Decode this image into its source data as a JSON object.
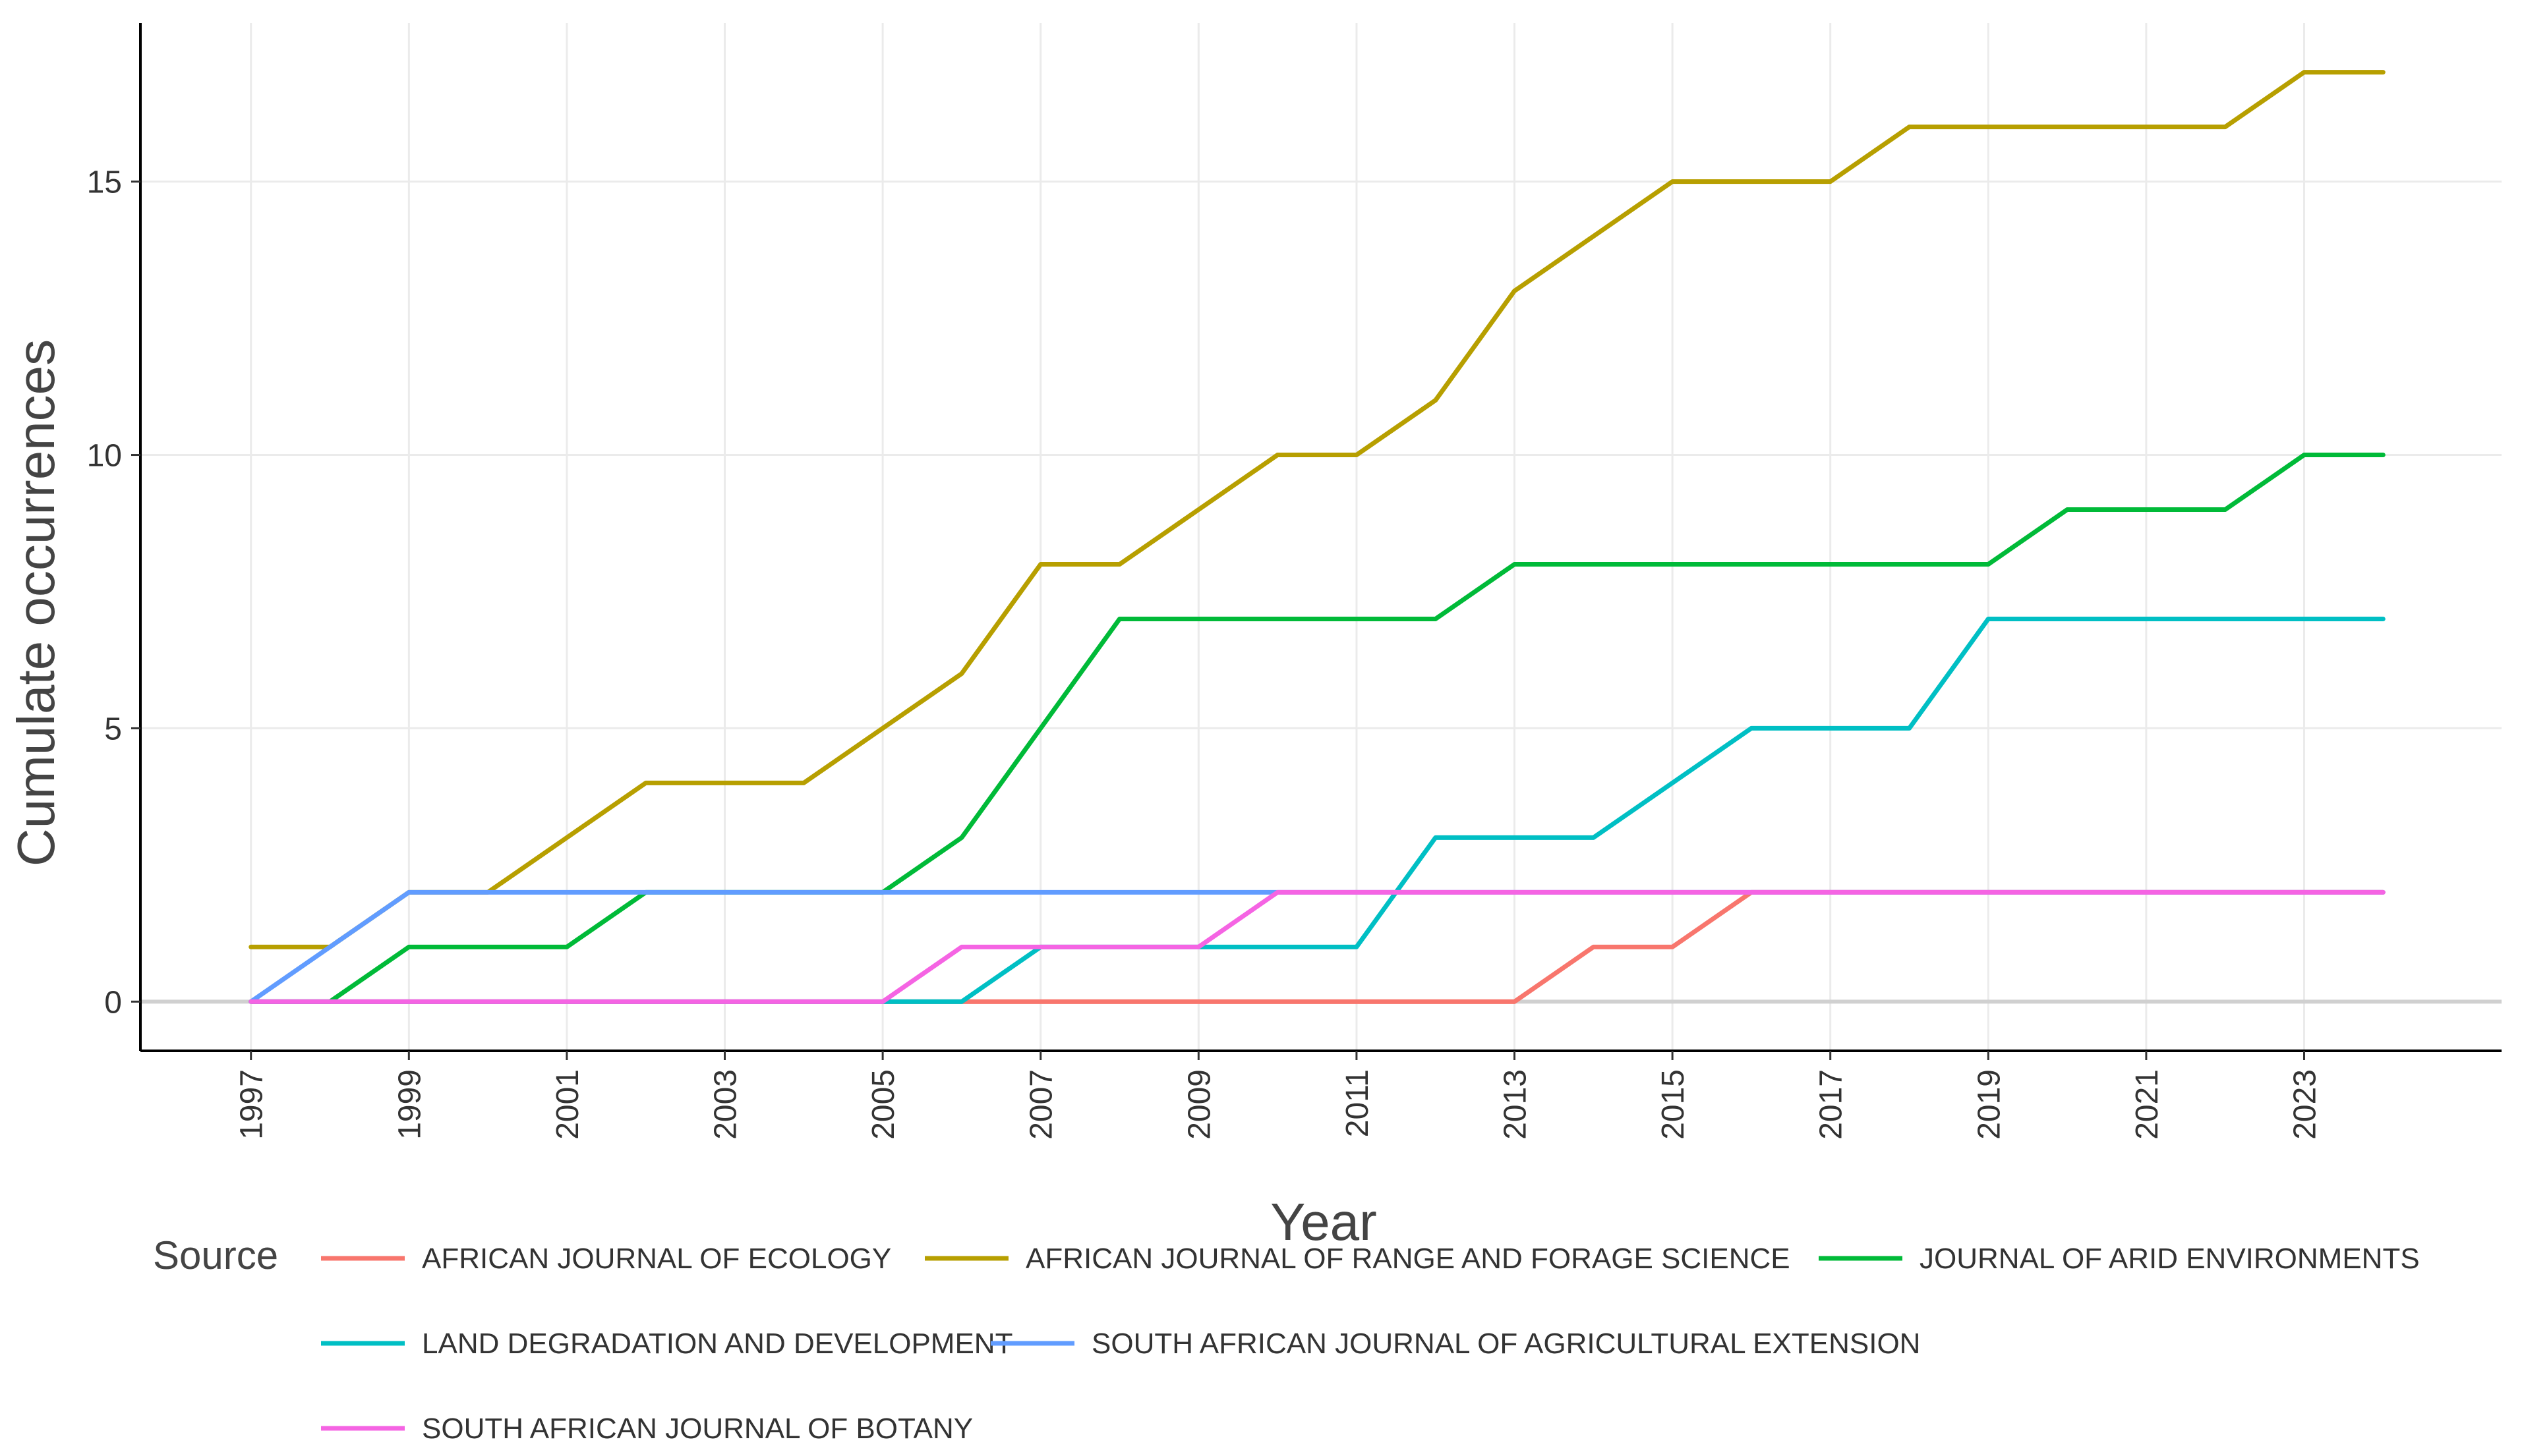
{
  "chart_data": {
    "type": "line",
    "title": "",
    "xlabel": "Year",
    "ylabel": "Cumulate occurrences",
    "xlim": [
      1995.6,
      2025.5
    ],
    "ylim": [
      -0.9,
      17.9
    ],
    "x_ticks": [
      1997,
      1999,
      2001,
      2003,
      2005,
      2007,
      2009,
      2011,
      2013,
      2015,
      2017,
      2019,
      2021,
      2023
    ],
    "x_tick_labels": [
      "1997",
      "1999",
      "2001",
      "2003",
      "2005",
      "2007",
      "2009",
      "2011",
      "2013",
      "2015",
      "2017",
      "2019",
      "2021",
      "2023"
    ],
    "y_ticks": [
      0,
      5,
      10,
      15
    ],
    "y_tick_labels": [
      "0",
      "5",
      "10",
      "15"
    ],
    "grid": true,
    "legend_title": "Source",
    "legend_position": "bottom",
    "x": [
      1997,
      1998,
      1999,
      2000,
      2001,
      2002,
      2003,
      2004,
      2005,
      2006,
      2007,
      2008,
      2009,
      2010,
      2011,
      2012,
      2013,
      2014,
      2015,
      2016,
      2017,
      2018,
      2019,
      2020,
      2021,
      2022,
      2023,
      2024
    ],
    "series": [
      {
        "name": "AFRICAN JOURNAL OF ECOLOGY",
        "color": "#F8766D",
        "values": [
          0,
          0,
          0,
          0,
          0,
          0,
          0,
          0,
          0,
          0,
          0,
          0,
          0,
          0,
          0,
          0,
          0,
          1,
          1,
          2,
          2,
          2,
          2,
          2,
          2,
          2,
          2,
          2
        ]
      },
      {
        "name": "AFRICAN JOURNAL OF RANGE AND FORAGE SCIENCE",
        "color": "#B79F00",
        "values": [
          1,
          1,
          2,
          2,
          3,
          4,
          4,
          4,
          5,
          6,
          8,
          8,
          9,
          10,
          10,
          11,
          13,
          14,
          15,
          15,
          15,
          16,
          16,
          16,
          16,
          16,
          17,
          17
        ]
      },
      {
        "name": "JOURNAL OF ARID ENVIRONMENTS",
        "color": "#00BA38",
        "values": [
          0,
          0,
          1,
          1,
          1,
          2,
          2,
          2,
          2,
          3,
          5,
          7,
          7,
          7,
          7,
          7,
          8,
          8,
          8,
          8,
          8,
          8,
          8,
          9,
          9,
          9,
          10,
          10
        ]
      },
      {
        "name": "LAND DEGRADATION AND DEVELOPMENT",
        "color": "#00BFC4",
        "values": [
          0,
          0,
          0,
          0,
          0,
          0,
          0,
          0,
          0,
          0,
          1,
          1,
          1,
          1,
          1,
          3,
          3,
          3,
          4,
          5,
          5,
          5,
          7,
          7,
          7,
          7,
          7,
          7
        ]
      },
      {
        "name": "SOUTH AFRICAN JOURNAL OF AGRICULTURAL EXTENSION",
        "color": "#619CFF",
        "values": [
          0,
          1,
          2,
          2,
          2,
          2,
          2,
          2,
          2,
          2,
          2,
          2,
          2,
          2,
          2,
          2,
          2,
          2,
          2,
          2,
          2,
          2,
          2,
          2,
          2,
          2,
          2,
          2
        ]
      },
      {
        "name": "SOUTH AFRICAN JOURNAL OF BOTANY",
        "color": "#F564E3",
        "values": [
          0,
          0,
          0,
          0,
          0,
          0,
          0,
          0,
          0,
          1,
          1,
          1,
          1,
          2,
          2,
          2,
          2,
          2,
          2,
          2,
          2,
          2,
          2,
          2,
          2,
          2,
          2,
          2
        ]
      }
    ]
  }
}
